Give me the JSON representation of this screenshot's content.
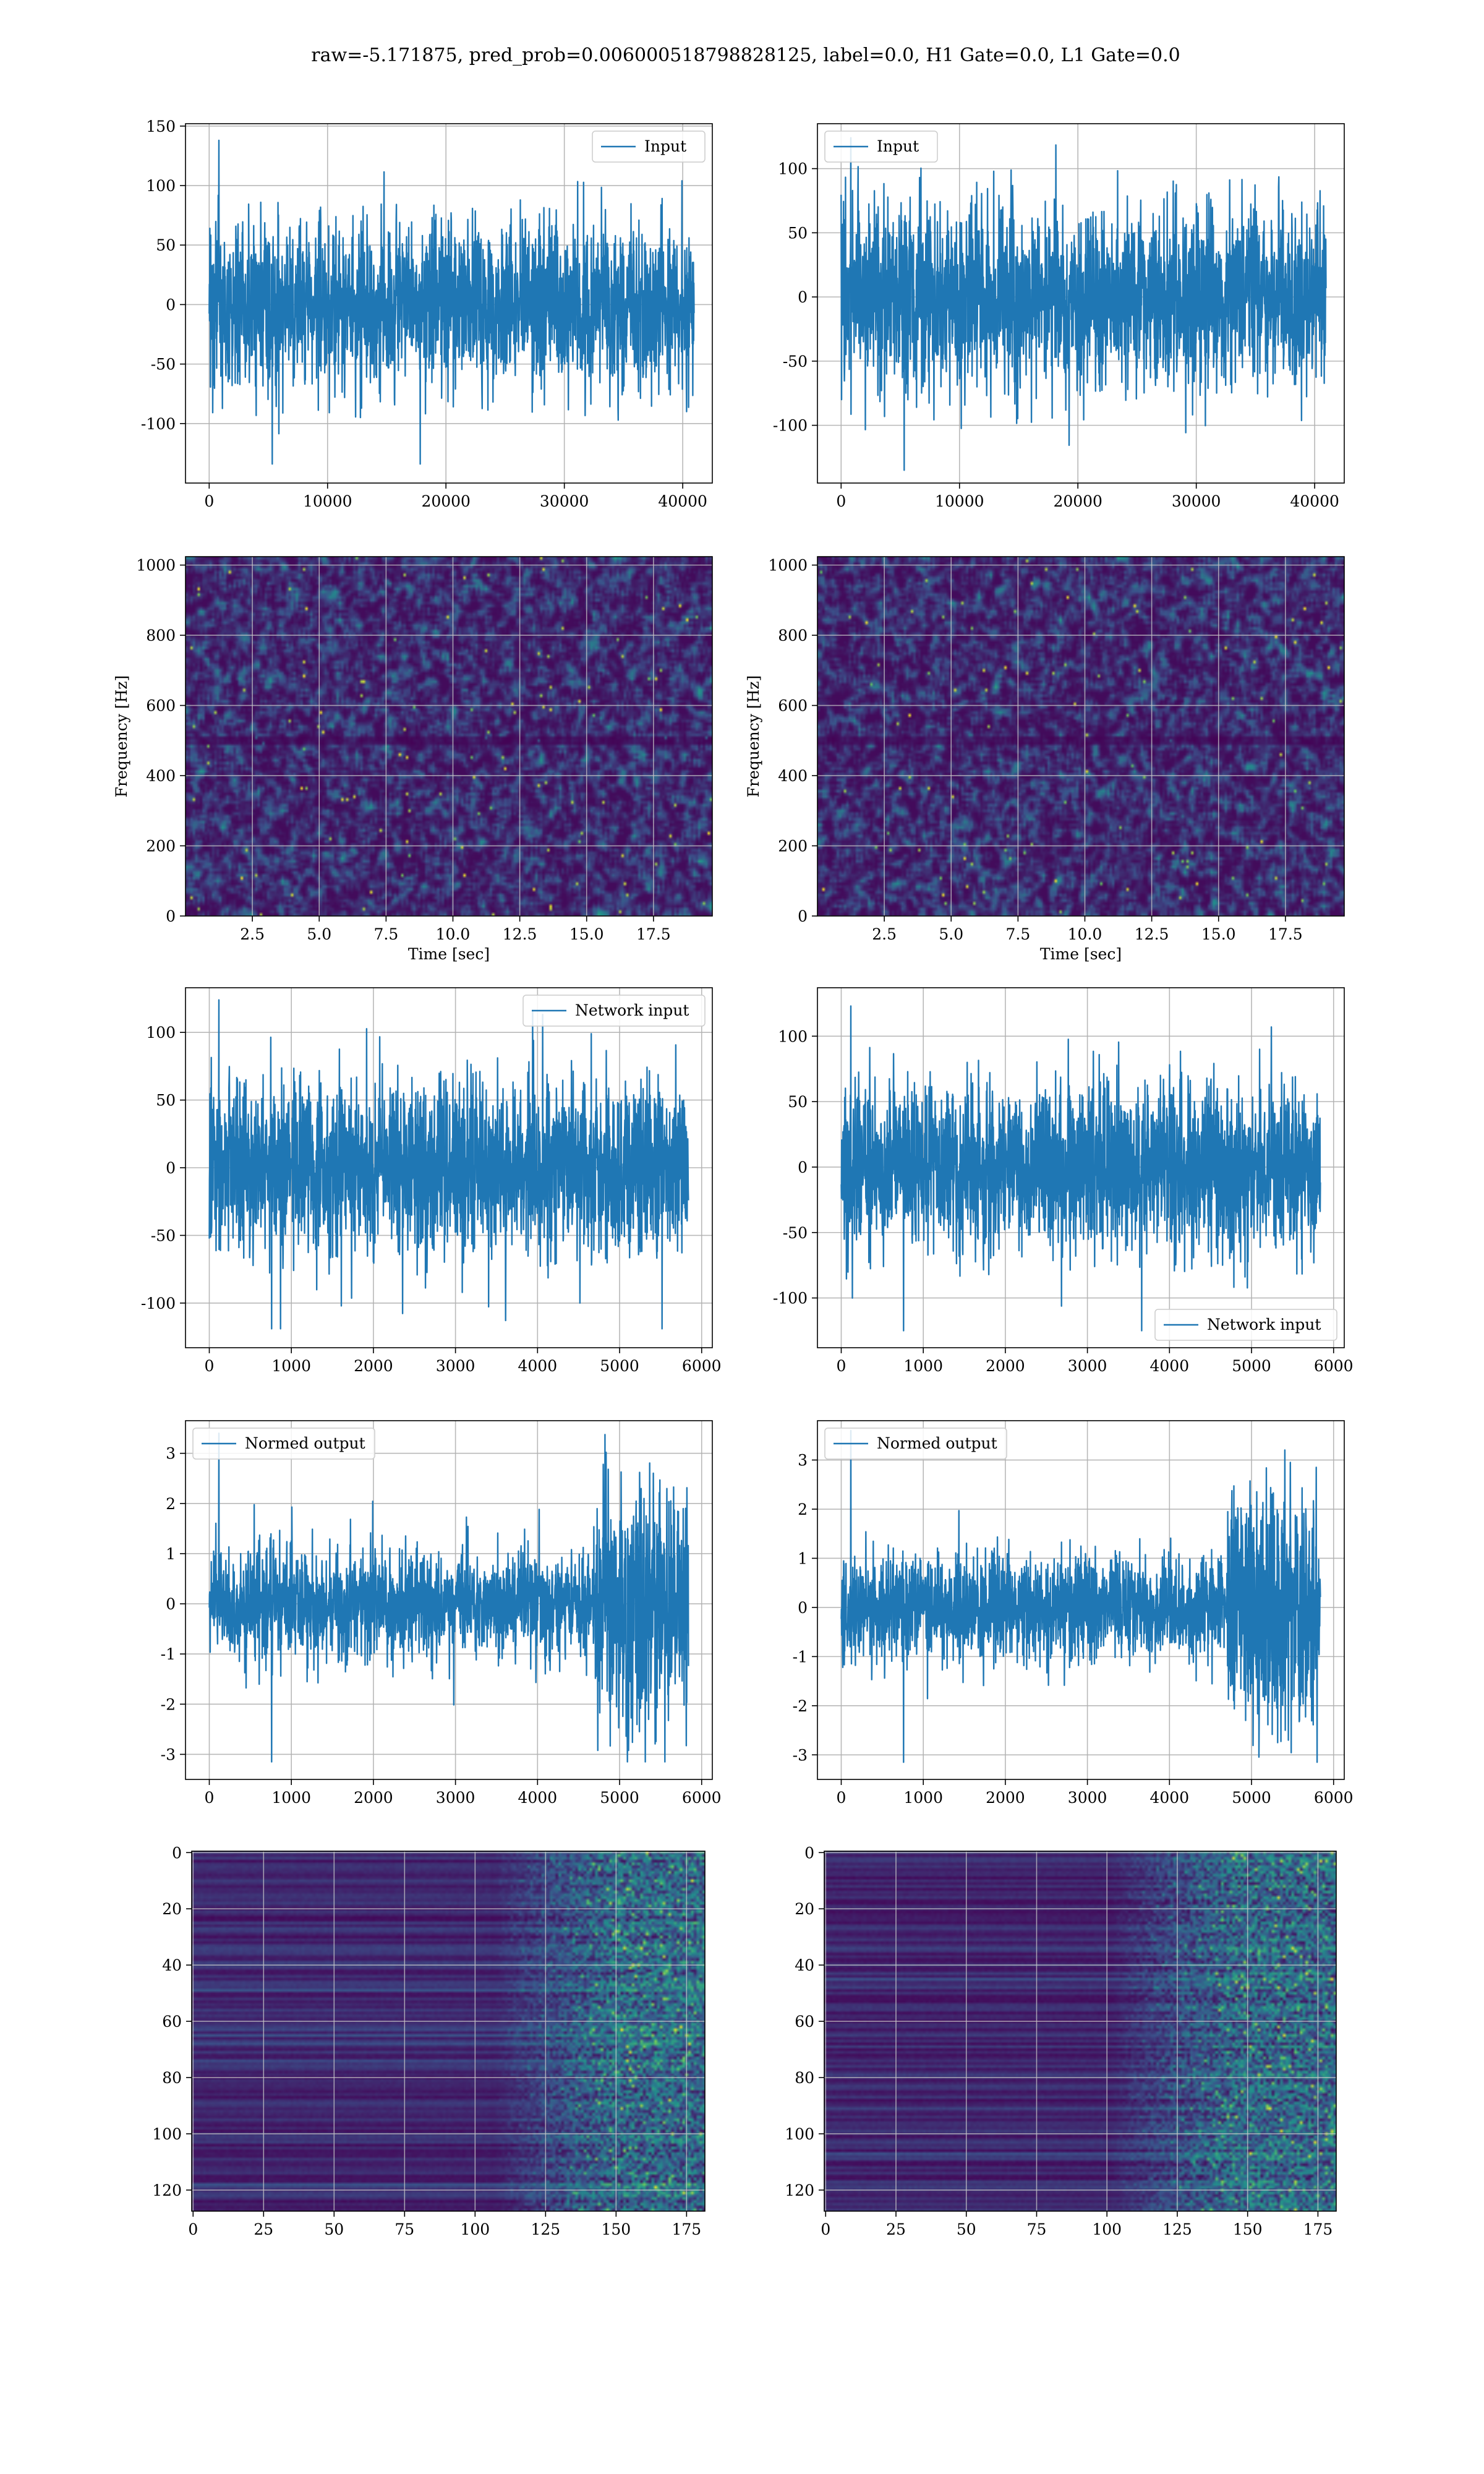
{
  "suptitle": "raw=-5.171875, pred_prob=0.006000518798828125, label=0.0, H1 Gate=0.0, L1 Gate=0.0",
  "colors": {
    "line": "#1f77b4",
    "grid": "#b0b0b0",
    "viridis_low": "#440154",
    "viridis_mid": "#21918c",
    "viridis_high": "#fde725"
  },
  "chart_data": [
    {
      "id": "input-h1",
      "type": "line",
      "style": "noise",
      "legend": "Input",
      "legend_position": "upper right",
      "xlim": [
        -2000,
        42500
      ],
      "ylim": [
        -150,
        152
      ],
      "xticks": [
        0,
        10000,
        20000,
        30000,
        40000
      ],
      "yticks": [
        -100,
        -50,
        0,
        50,
        100,
        150
      ],
      "xlabel": "",
      "ylabel": "",
      "grid": true,
      "signal": {
        "n": 40960,
        "std": 30,
        "max": 138,
        "min": -134
      }
    },
    {
      "id": "input-l1",
      "type": "line",
      "style": "noise",
      "legend": "Input",
      "legend_position": "upper left",
      "xlim": [
        -2000,
        42500
      ],
      "ylim": [
        -145,
        135
      ],
      "xticks": [
        0,
        10000,
        20000,
        30000,
        40000
      ],
      "yticks": [
        -100,
        -50,
        0,
        50,
        100
      ],
      "xlabel": "",
      "ylabel": "",
      "grid": true,
      "signal": {
        "n": 40960,
        "std": 30,
        "max": 124,
        "min": -135
      }
    },
    {
      "id": "spectrogram-h1",
      "type": "heatmap",
      "style": "spectrogram",
      "xlim": [
        0,
        19.7
      ],
      "ylim": [
        0,
        1024
      ],
      "xticks": [
        2.5,
        5.0,
        7.5,
        10.0,
        12.5,
        15.0,
        17.5
      ],
      "yticks": [
        0,
        200,
        400,
        600,
        800,
        1000
      ],
      "xlabel": "Time [sec]",
      "ylabel": "Frequency [Hz]",
      "grid": true,
      "colormap": "viridis"
    },
    {
      "id": "spectrogram-l1",
      "type": "heatmap",
      "style": "spectrogram",
      "xlim": [
        0,
        19.7
      ],
      "ylim": [
        0,
        1024
      ],
      "xticks": [
        2.5,
        5.0,
        7.5,
        10.0,
        12.5,
        15.0,
        17.5
      ],
      "yticks": [
        0,
        200,
        400,
        600,
        800,
        1000
      ],
      "xlabel": "Time [sec]",
      "ylabel": "Frequency [Hz]",
      "grid": true,
      "colormap": "viridis"
    },
    {
      "id": "network-input-h1",
      "type": "line",
      "style": "noise",
      "legend": "Network input",
      "legend_position": "upper right",
      "xlim": [
        -290,
        6130
      ],
      "ylim": [
        -133,
        133
      ],
      "xticks": [
        0,
        1000,
        2000,
        3000,
        4000,
        5000,
        6000
      ],
      "yticks": [
        -100,
        -50,
        0,
        50,
        100
      ],
      "xlabel": "",
      "ylabel": "",
      "grid": true,
      "signal": {
        "n": 5840,
        "std": 28,
        "max": 124,
        "min": -119
      }
    },
    {
      "id": "network-input-l1",
      "type": "line",
      "style": "noise",
      "legend": "Network input",
      "legend_position": "lower right",
      "xlim": [
        -290,
        6130
      ],
      "ylim": [
        -138,
        137
      ],
      "xticks": [
        0,
        1000,
        2000,
        3000,
        4000,
        5000,
        6000
      ],
      "yticks": [
        -100,
        -50,
        0,
        50,
        100
      ],
      "xlabel": "",
      "ylabel": "",
      "grid": true,
      "signal": {
        "n": 5840,
        "std": 27,
        "max": 123,
        "min": -125
      }
    },
    {
      "id": "normed-output-h1",
      "type": "line",
      "style": "burst",
      "legend": "Normed output",
      "legend_position": "upper left",
      "xlim": [
        -290,
        6130
      ],
      "ylim": [
        -3.5,
        3.65
      ],
      "xticks": [
        0,
        1000,
        2000,
        3000,
        4000,
        5000,
        6000
      ],
      "yticks": [
        -3,
        -2,
        -1,
        0,
        1,
        2,
        3
      ],
      "xlabel": "",
      "ylabel": "",
      "grid": true,
      "signal": {
        "n": 5840,
        "std": 0.45,
        "burst_start": 4700,
        "burst_std": 1.05,
        "max": 3.4,
        "min": -3.15
      }
    },
    {
      "id": "normed-output-l1",
      "type": "line",
      "style": "burst",
      "legend": "Normed output",
      "legend_position": "upper left",
      "xlim": [
        -290,
        6130
      ],
      "ylim": [
        -3.5,
        3.8
      ],
      "xticks": [
        0,
        1000,
        2000,
        3000,
        4000,
        5000,
        6000
      ],
      "yticks": [
        -3,
        -2,
        -1,
        0,
        1,
        2,
        3
      ],
      "xlabel": "",
      "ylabel": "",
      "grid": true,
      "signal": {
        "n": 5840,
        "std": 0.45,
        "burst_start": 4700,
        "burst_std": 1.05,
        "max": 3.6,
        "min": -3.15
      }
    },
    {
      "id": "feature-map-h1",
      "type": "heatmap",
      "style": "featuremap",
      "xlim": [
        -0.5,
        181.5
      ],
      "ylim": [
        127.5,
        -0.5
      ],
      "xticks": [
        0,
        25,
        50,
        75,
        100,
        125,
        150,
        175
      ],
      "yticks": [
        0,
        20,
        40,
        60,
        80,
        100,
        120
      ],
      "xlabel": "",
      "ylabel": "",
      "grid": true,
      "colormap": "viridis",
      "active_from_column": 130
    },
    {
      "id": "feature-map-l1",
      "type": "heatmap",
      "style": "featuremap",
      "xlim": [
        -0.5,
        181.5
      ],
      "ylim": [
        127.5,
        -0.5
      ],
      "xticks": [
        0,
        25,
        50,
        75,
        100,
        125,
        150,
        175
      ],
      "yticks": [
        0,
        20,
        40,
        60,
        80,
        100,
        120
      ],
      "xlabel": "",
      "ylabel": "",
      "grid": true,
      "colormap": "viridis",
      "active_from_column": 125
    }
  ]
}
